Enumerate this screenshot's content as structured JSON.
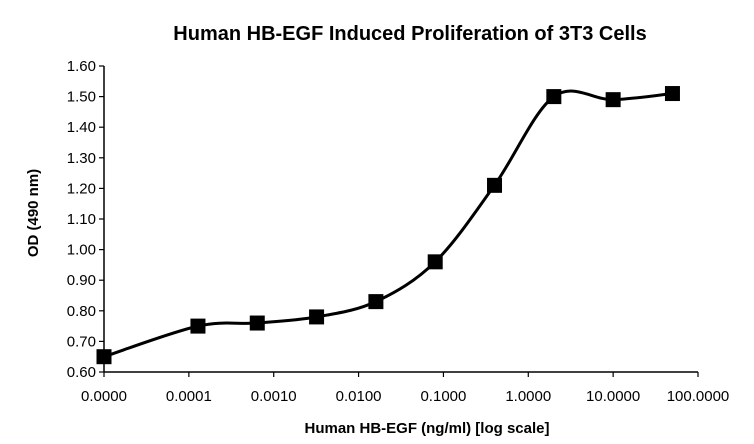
{
  "chart_data": {
    "type": "line",
    "title": "Human HB-EGF Induced Proliferation of 3T3 Cells",
    "xlabel": "Human HB-EGF (ng/ml) [log scale]",
    "ylabel": "OD (490 nm)",
    "x_scale": "log",
    "x_ticks": [
      "0.0000",
      "0.0001",
      "0.0010",
      "0.0100",
      "0.1000",
      "1.0000",
      "10.0000",
      "100.0000"
    ],
    "y_ticks": [
      "0.60",
      "0.70",
      "0.80",
      "0.90",
      "1.00",
      "1.10",
      "1.20",
      "1.30",
      "1.40",
      "1.50",
      "1.60"
    ],
    "ylim": [
      0.6,
      1.6
    ],
    "grid": false,
    "legend": "none",
    "marker": "square",
    "colors": {
      "line": "#000000",
      "marker": "#000000",
      "axis": "#000000"
    },
    "series": [
      {
        "x": [
          1e-05,
          0.000128,
          0.00064,
          0.0032,
          0.016,
          0.08,
          0.4,
          2,
          10,
          50
        ],
        "y": [
          0.65,
          0.75,
          0.76,
          0.78,
          0.83,
          0.96,
          1.21,
          1.5,
          1.49,
          1.51
        ]
      }
    ]
  }
}
